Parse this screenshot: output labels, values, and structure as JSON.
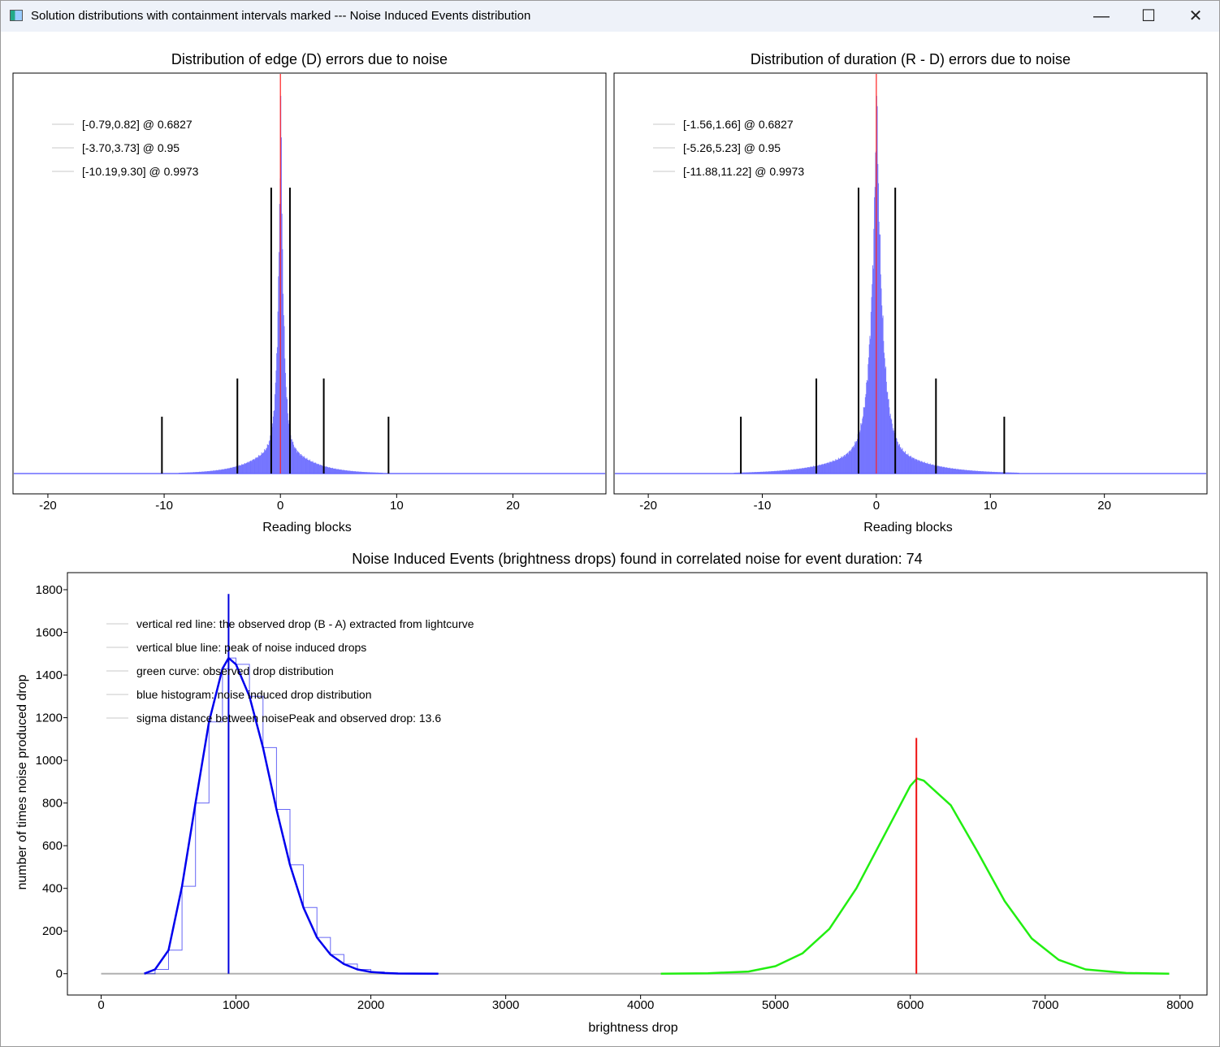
{
  "window": {
    "title": "Solution distributions with containment intervals marked --- Noise Induced Events distribution",
    "minimize_glyph": "—",
    "maximize_glyph": "☐",
    "close_glyph": "✕"
  },
  "chart_data": [
    {
      "type": "bar",
      "title": "Distribution of edge (D) errors due to noise",
      "xlabel": "Reading blocks",
      "ylabel": "",
      "xlim": [
        -23,
        28
      ],
      "xticks": [
        -20,
        -10,
        0,
        10,
        20
      ],
      "legend": [
        "[-0.79,0.82] @ 0.6827",
        "[-3.70,3.73] @ 0.95",
        "[-10.19,9.30] @ 0.9973"
      ],
      "intervals": [
        {
          "low": -0.79,
          "high": 0.82,
          "confidence": 0.6827
        },
        {
          "low": -3.7,
          "high": 3.73,
          "confidence": 0.95
        },
        {
          "low": -10.19,
          "high": 9.3,
          "confidence": 0.9973
        }
      ],
      "center_line": 0,
      "histogram": {
        "peak": 0,
        "width": 0.25,
        "tail_width": 2.2,
        "color": "#6666ff"
      },
      "colors": {
        "histogram": "#6b6bff",
        "center_line": "#ff2020",
        "interval_lines": "#000000"
      }
    },
    {
      "type": "bar",
      "title": "Distribution of duration (R - D) errors due to noise",
      "xlabel": "Reading blocks",
      "ylabel": "",
      "xlim": [
        -23,
        29
      ],
      "xticks": [
        -20,
        -10,
        0,
        10,
        20
      ],
      "legend": [
        "[-1.56,1.66] @ 0.6827",
        "[-5.26,5.23] @ 0.95",
        "[-11.88,11.22] @ 0.9973"
      ],
      "intervals": [
        {
          "low": -1.56,
          "high": 1.66,
          "confidence": 0.6827
        },
        {
          "low": -5.26,
          "high": 5.23,
          "confidence": 0.95
        },
        {
          "low": -11.88,
          "high": 11.22,
          "confidence": 0.9973
        }
      ],
      "center_line": 0,
      "histogram": {
        "peak": 0,
        "width": 0.5,
        "tail_width": 3.2,
        "color": "#6666ff"
      },
      "colors": {
        "histogram": "#6b6bff",
        "center_line": "#ff2020",
        "interval_lines": "#000000"
      }
    },
    {
      "type": "line",
      "title": "Noise Induced Events (brightness drops) found in correlated noise for event duration: 74",
      "xlabel": "brightness drop",
      "ylabel": "number of times noise produced drop",
      "xlim": [
        -250,
        8200
      ],
      "ylim": [
        -100,
        1880
      ],
      "xticks": [
        0,
        1000,
        2000,
        3000,
        4000,
        5000,
        6000,
        7000,
        8000
      ],
      "yticks": [
        0,
        200,
        400,
        600,
        800,
        1000,
        1200,
        1400,
        1600,
        1800
      ],
      "legend": [
        "vertical red line: the observed drop (B - A) extracted from lightcurve",
        "vertical blue line: peak of noise induced drops",
        "green curve: observed drop distribution",
        "blue histogram: noise induced drop distribution",
        "sigma distance between noisePeak and observed drop: 13.6"
      ],
      "series": [
        {
          "name": "blue histogram",
          "x": [
            320,
            400,
            500,
            600,
            700,
            800,
            900,
            945,
            1000,
            1100,
            1200,
            1300,
            1400,
            1500,
            1600,
            1700,
            1800,
            1900,
            2000,
            2100,
            2200,
            2500
          ],
          "y": [
            0,
            20,
            110,
            410,
            800,
            1180,
            1430,
            1480,
            1450,
            1300,
            1060,
            770,
            510,
            310,
            170,
            90,
            45,
            20,
            8,
            3,
            1,
            0
          ]
        },
        {
          "name": "green curve",
          "x": [
            4150,
            4500,
            4800,
            5000,
            5200,
            5400,
            5600,
            5800,
            6000,
            6050,
            6100,
            6300,
            6500,
            6700,
            6900,
            7100,
            7300,
            7600,
            7920
          ],
          "y": [
            0,
            2,
            10,
            35,
            95,
            210,
            400,
            640,
            880,
            915,
            905,
            790,
            570,
            340,
            165,
            65,
            20,
            3,
            0
          ]
        }
      ],
      "baseline": {
        "from": 0,
        "to": 7920,
        "y": 0
      },
      "blue_line": {
        "x": 945,
        "top": 1780
      },
      "red_line": {
        "x": 6045,
        "top": 1105
      },
      "colors": {
        "histogram": "#0000ee",
        "green_curve": "#22ee11",
        "red_line": "#ee1111",
        "blue_line": "#0000dd",
        "baseline": "#b0b0b0"
      }
    }
  ]
}
